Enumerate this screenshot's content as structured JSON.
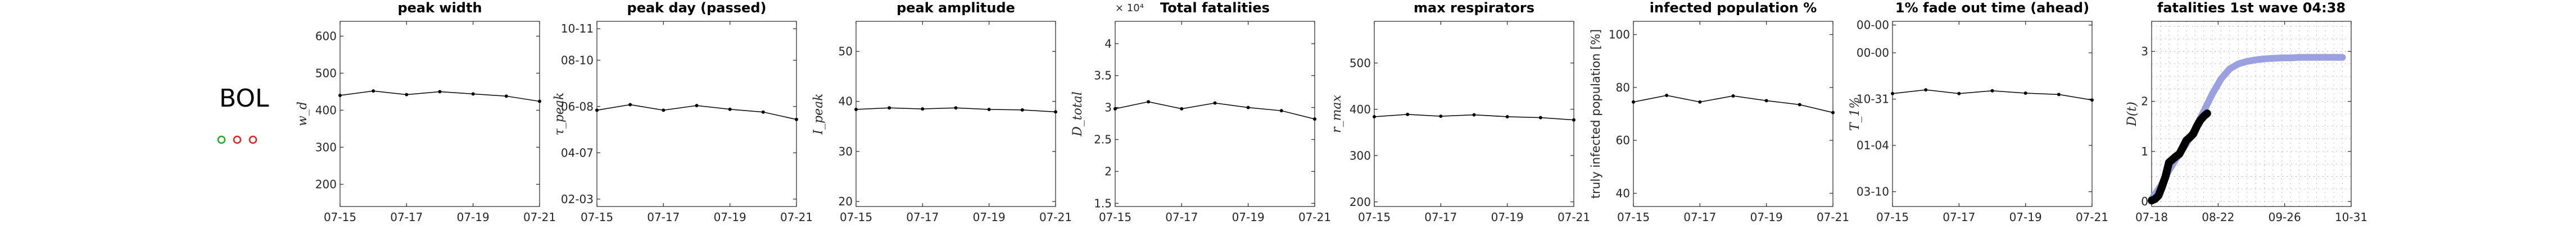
{
  "country": {
    "label": "BOL",
    "dots": [
      {
        "color": "#22aa22",
        "symbol": "o"
      },
      {
        "color": "#dd2222",
        "symbol": "o"
      },
      {
        "color": "#dd2222",
        "symbol": "o"
      }
    ]
  },
  "chart_data": [
    {
      "type": "line",
      "title": "peak width",
      "ylabel": "w_d",
      "ylim": [
        140,
        640
      ],
      "yticks": [
        200,
        300,
        400,
        500,
        600
      ],
      "yticklabels": [
        "200",
        "300",
        "400",
        "500",
        "600"
      ],
      "xticklabels": [
        "07-15",
        "07-17",
        "07-19",
        "07-21"
      ],
      "x": [
        "07-15",
        "07-16",
        "07-17",
        "07-18",
        "07-19",
        "07-20",
        "07-21"
      ],
      "values": [
        440,
        452,
        442,
        450,
        444,
        438,
        424
      ],
      "color": "#000000"
    },
    {
      "type": "line",
      "title": "peak day (passed)",
      "ylabel": "τ_peak",
      "ylim": [
        0,
        100
      ],
      "yticks": [
        4,
        29,
        54,
        79,
        96
      ],
      "yticklabels": [
        "02-03",
        "04-07",
        "06-08",
        "08-10",
        "10-11"
      ],
      "xticklabels": [
        "07-15",
        "07-17",
        "07-19",
        "07-21"
      ],
      "x": [
        "07-15",
        "07-16",
        "07-17",
        "07-18",
        "07-19",
        "07-20",
        "07-21"
      ],
      "values": [
        52,
        55,
        52,
        54.5,
        52.5,
        51,
        47
      ],
      "color": "#000000"
    },
    {
      "type": "line",
      "title": "peak amplitude",
      "ylabel": "I_peak",
      "ylim": [
        19,
        56
      ],
      "yticks": [
        20,
        30,
        40,
        50
      ],
      "yticklabels": [
        "20",
        "30",
        "40",
        "50"
      ],
      "xticklabels": [
        "07-15",
        "07-17",
        "07-19",
        "07-21"
      ],
      "x": [
        "07-15",
        "07-16",
        "07-17",
        "07-18",
        "07-19",
        "07-20",
        "07-21"
      ],
      "values": [
        38.4,
        38.7,
        38.5,
        38.7,
        38.4,
        38.3,
        37.9
      ],
      "color": "#000000"
    },
    {
      "type": "line",
      "title": "Total fatalities",
      "ylabel": "D_total",
      "ylim": [
        1.45,
        4.35
      ],
      "yticks": [
        1.5,
        2,
        2.5,
        3,
        3.5,
        4
      ],
      "yticklabels": [
        "1.5",
        "2",
        "2.5",
        "3",
        "3.5",
        "4"
      ],
      "exponent": "× 10⁴",
      "xticklabels": [
        "07-15",
        "07-17",
        "07-19",
        "07-21"
      ],
      "x": [
        "07-15",
        "07-16",
        "07-17",
        "07-18",
        "07-19",
        "07-20",
        "07-21"
      ],
      "values": [
        2.98,
        3.09,
        2.98,
        3.07,
        3.0,
        2.95,
        2.82
      ],
      "color": "#000000"
    },
    {
      "type": "line",
      "title": "max respirators",
      "ylabel": "r_max",
      "ylim": [
        190,
        590
      ],
      "yticks": [
        200,
        300,
        400,
        500
      ],
      "yticklabels": [
        "200",
        "300",
        "400",
        "500"
      ],
      "xticklabels": [
        "07-15",
        "07-17",
        "07-19",
        "07-21"
      ],
      "x": [
        "07-15",
        "07-16",
        "07-17",
        "07-18",
        "07-19",
        "07-20",
        "07-21"
      ],
      "values": [
        384,
        389,
        385,
        388,
        384,
        382,
        377
      ],
      "color": "#000000"
    },
    {
      "type": "line",
      "title": "infected population %",
      "ylabel": "truly infected population [%]",
      "ylim": [
        35,
        105
      ],
      "yticks": [
        40,
        60,
        80,
        100
      ],
      "yticklabels": [
        "40",
        "60",
        "80",
        "100"
      ],
      "xticklabels": [
        "07-15",
        "07-17",
        "07-19",
        "07-21"
      ],
      "x": [
        "07-15",
        "07-16",
        "07-17",
        "07-18",
        "07-19",
        "07-20",
        "07-21"
      ],
      "values": [
        74.5,
        77,
        74.5,
        76.8,
        75,
        73.5,
        70.5
      ],
      "color": "#000000"
    },
    {
      "type": "line",
      "title": "1% fade out time (ahead)",
      "ylabel": "T_1%",
      "ylim": [
        0,
        100
      ],
      "yticks": [
        8,
        33,
        58,
        83,
        98
      ],
      "yticklabels": [
        "03-10",
        "01-04",
        "10-31",
        "00-00",
        "00-00"
      ],
      "xticklabels": [
        "07-15",
        "07-17",
        "07-19",
        "07-21"
      ],
      "x": [
        "07-15",
        "07-16",
        "07-17",
        "07-18",
        "07-19",
        "07-20",
        "07-21"
      ],
      "values": [
        61,
        63,
        61,
        62.5,
        61.2,
        60.5,
        57.5
      ],
      "color": "#000000"
    },
    {
      "type": "line",
      "title": "fatalities 1st wave 04:38",
      "ylabel": "D(t)",
      "ylim": [
        -0.1,
        3.6
      ],
      "yticks": [
        0,
        1,
        2,
        3
      ],
      "yticklabels": [
        "0",
        "1",
        "2",
        "3"
      ],
      "xticklabels": [
        "07-18",
        "08-22",
        "09-26",
        "10-31"
      ],
      "xlim": [
        0,
        115
      ],
      "series": [
        {
          "name": "",
          "color": "#8f96dd",
          "x": [
            0,
            5,
            10,
            15,
            20,
            25,
            30,
            35,
            40,
            45,
            50,
            55,
            60,
            65,
            70,
            75,
            80,
            85,
            90,
            95,
            100,
            105,
            110
          ],
          "values": [
            0.05,
            0.3,
            0.62,
            0.9,
            1.15,
            1.45,
            1.8,
            2.15,
            2.45,
            2.65,
            2.75,
            2.8,
            2.83,
            2.85,
            2.86,
            2.87,
            2.87,
            2.88,
            2.88,
            2.88,
            2.88,
            2.88,
            2.88
          ]
        },
        {
          "name": "",
          "color": "#000000",
          "x": [
            0,
            2,
            4,
            6,
            8,
            10,
            12,
            14,
            16,
            18,
            20,
            22,
            24,
            26,
            28,
            30,
            32
          ],
          "values": [
            0.02,
            0.05,
            0.12,
            0.3,
            0.5,
            0.78,
            0.84,
            0.9,
            0.95,
            1.08,
            1.22,
            1.28,
            1.35,
            1.5,
            1.62,
            1.7,
            1.76
          ]
        }
      ]
    }
  ]
}
